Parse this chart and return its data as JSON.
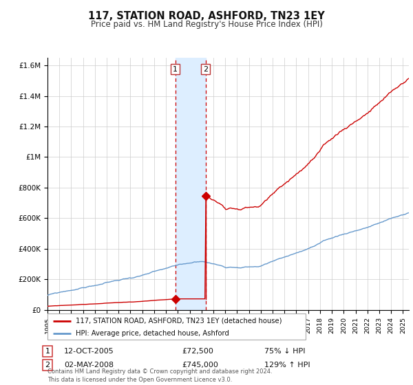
{
  "title": "117, STATION ROAD, ASHFORD, TN23 1EY",
  "subtitle": "Price paid vs. HM Land Registry's House Price Index (HPI)",
  "legend_line1": "117, STATION ROAD, ASHFORD, TN23 1EY (detached house)",
  "legend_line2": "HPI: Average price, detached house, Ashford",
  "transaction1_date": "12-OCT-2005",
  "transaction1_price": 72500,
  "transaction1_label": "75% ↓ HPI",
  "transaction2_date": "02-MAY-2008",
  "transaction2_price": 745000,
  "transaction2_label": "129% ↑ HPI",
  "transaction1_year": 2005.79,
  "transaction2_year": 2008.34,
  "red_color": "#cc0000",
  "blue_color": "#6699cc",
  "shade_color": "#ddeeff",
  "grid_color": "#cccccc",
  "background_color": "#ffffff",
  "ylim": [
    0,
    1650000
  ],
  "xlim_start": 1995.0,
  "xlim_end": 2025.5,
  "footnote": "Contains HM Land Registry data © Crown copyright and database right 2024.\nThis data is licensed under the Open Government Licence v3.0."
}
